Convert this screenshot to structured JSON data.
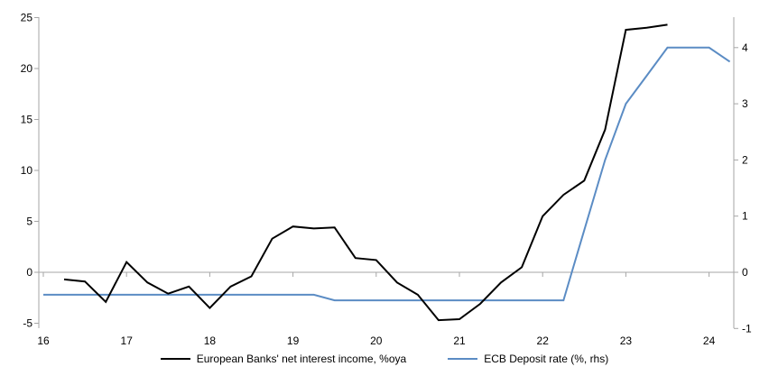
{
  "chart_data": {
    "type": "line",
    "title": "",
    "x_axis": {
      "ticks": [
        16,
        17,
        18,
        19,
        20,
        21,
        22,
        23,
        24
      ],
      "min": 16,
      "max": 24.3
    },
    "left_axis": {
      "ticks": [
        -5,
        0,
        5,
        10,
        15,
        20,
        25
      ],
      "min": -5.3,
      "max": 25
    },
    "right_axis": {
      "ticks": [
        -1,
        0,
        1,
        2,
        3,
        4
      ],
      "min": -1.05,
      "max": 4.55
    },
    "zero_line": true,
    "grid": "zero-line-only",
    "legend_position": "bottom-center",
    "colors": {
      "axis": "#a6a6a6",
      "zero_line": "#a6a6a6",
      "text": "#000000",
      "background": "#ffffff"
    },
    "series": [
      {
        "name": "European Banks' net interest income, %oya",
        "axis": "left",
        "color": "#000000",
        "points": [
          [
            16.25,
            -0.7
          ],
          [
            16.5,
            -0.9
          ],
          [
            16.75,
            -2.9
          ],
          [
            17,
            1.0
          ],
          [
            17.25,
            -1.0
          ],
          [
            17.5,
            -2.1
          ],
          [
            17.75,
            -1.4
          ],
          [
            18,
            -3.5
          ],
          [
            18.25,
            -1.4
          ],
          [
            18.5,
            -0.4
          ],
          [
            18.75,
            3.3
          ],
          [
            19,
            4.5
          ],
          [
            19.25,
            4.3
          ],
          [
            19.5,
            4.4
          ],
          [
            19.75,
            1.4
          ],
          [
            20,
            1.2
          ],
          [
            20.25,
            -1.0
          ],
          [
            20.5,
            -2.2
          ],
          [
            20.75,
            -4.7
          ],
          [
            21,
            -4.6
          ],
          [
            21.25,
            -3.1
          ],
          [
            21.5,
            -1.0
          ],
          [
            21.75,
            0.5
          ],
          [
            22,
            5.5
          ],
          [
            22.25,
            7.6
          ],
          [
            22.5,
            9.0
          ],
          [
            22.75,
            14.0
          ],
          [
            23,
            23.8
          ],
          [
            23.25,
            24.0
          ],
          [
            23.5,
            24.3
          ]
        ]
      },
      {
        "name": "ECB Deposit rate (%, rhs)",
        "axis": "right",
        "color": "#5b8cc4",
        "points": [
          [
            16,
            -0.4
          ],
          [
            16.25,
            -0.4
          ],
          [
            16.5,
            -0.4
          ],
          [
            16.75,
            -0.4
          ],
          [
            17,
            -0.4
          ],
          [
            17.25,
            -0.4
          ],
          [
            17.5,
            -0.4
          ],
          [
            17.75,
            -0.4
          ],
          [
            18,
            -0.4
          ],
          [
            18.25,
            -0.4
          ],
          [
            18.5,
            -0.4
          ],
          [
            18.75,
            -0.4
          ],
          [
            19,
            -0.4
          ],
          [
            19.25,
            -0.4
          ],
          [
            19.5,
            -0.5
          ],
          [
            19.75,
            -0.5
          ],
          [
            20,
            -0.5
          ],
          [
            20.25,
            -0.5
          ],
          [
            20.5,
            -0.5
          ],
          [
            20.75,
            -0.5
          ],
          [
            21,
            -0.5
          ],
          [
            21.25,
            -0.5
          ],
          [
            21.5,
            -0.5
          ],
          [
            21.75,
            -0.5
          ],
          [
            22,
            -0.5
          ],
          [
            22.25,
            -0.5
          ],
          [
            22.5,
            0.75
          ],
          [
            22.75,
            2.0
          ],
          [
            23,
            3.0
          ],
          [
            23.25,
            3.5
          ],
          [
            23.5,
            4.0
          ],
          [
            23.75,
            4.0
          ],
          [
            24,
            4.0
          ],
          [
            24.25,
            3.75
          ]
        ]
      }
    ]
  }
}
